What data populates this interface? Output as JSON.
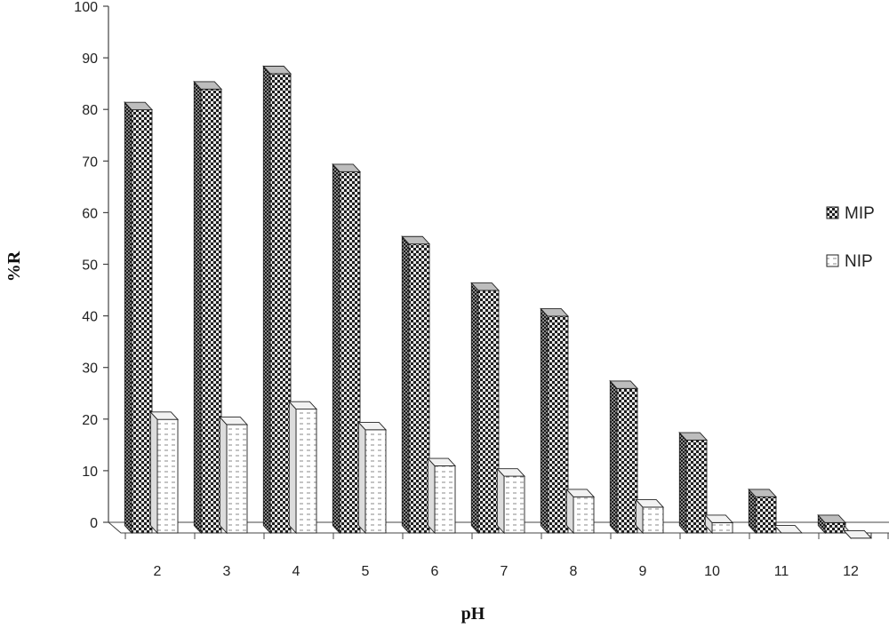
{
  "chart_data": {
    "type": "bar",
    "title": "",
    "xlabel": "pH",
    "ylabel": "%R",
    "categories": [
      "2",
      "3",
      "4",
      "5",
      "6",
      "7",
      "8",
      "9",
      "10",
      "11",
      "12"
    ],
    "series": [
      {
        "name": "MIP",
        "values": [
          82,
          86,
          89,
          70,
          56,
          47,
          42,
          28,
          18,
          7,
          2
        ],
        "pattern": "checker-dark"
      },
      {
        "name": "NIP",
        "values": [
          22,
          21,
          24,
          20,
          13,
          11,
          7,
          5,
          2,
          0,
          -1
        ],
        "pattern": "dashed-light"
      }
    ],
    "ylim": [
      0,
      100
    ],
    "yticks": [
      0,
      10,
      20,
      30,
      40,
      50,
      60,
      70,
      80,
      90,
      100
    ],
    "grid": false,
    "legend_position": "right",
    "style": "3d-columns",
    "colors": {
      "mip_dark": "#1e1e1e",
      "mip_light": "#e6e6e6",
      "nip_fill": "#ffffff",
      "nip_dash": "#777777",
      "axis": "#444444"
    }
  }
}
